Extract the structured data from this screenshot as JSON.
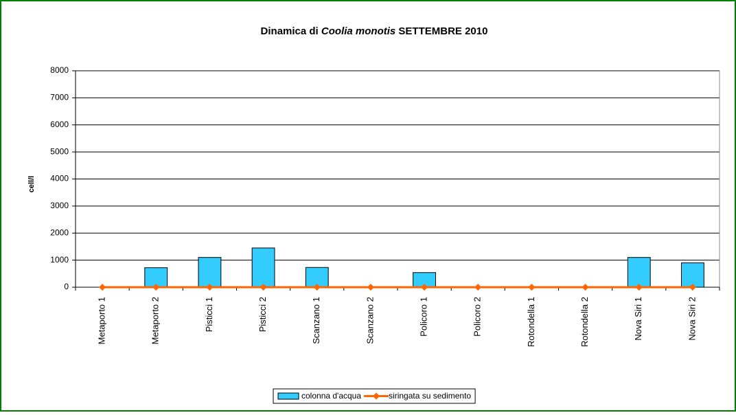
{
  "chart_data": {
    "type": "bar_line",
    "title": [
      "Dinamica di",
      "Coolia monotis",
      "SETTEMBRE 2010"
    ],
    "y_label": "cell/l",
    "categories": [
      "Metaporto 1",
      "Metaporto 2",
      "Pisticci 1",
      "Pisticci 2",
      "Scanzano 1",
      "Scanzano 2",
      "Policoro 1",
      "Policoro 2",
      "Rotondella 1",
      "Rotondella 2",
      "Nova Siri 1",
      "Nova Siri 2"
    ],
    "series": [
      {
        "name": "colonna d'acqua",
        "type": "bar",
        "color": "#33ccff",
        "values": [
          0,
          720,
          1100,
          1450,
          730,
          0,
          540,
          0,
          0,
          0,
          1100,
          900
        ]
      },
      {
        "name": "siringata su sedimento",
        "type": "line",
        "color": "#ff6600",
        "values": [
          0,
          0,
          0,
          0,
          0,
          0,
          0,
          0,
          0,
          0,
          0,
          0
        ]
      }
    ],
    "ylim": [
      0,
      8000
    ],
    "yticks": [
      0,
      1000,
      2000,
      3000,
      4000,
      5000,
      6000,
      7000,
      8000
    ],
    "grid": true,
    "legend": "bottom"
  }
}
